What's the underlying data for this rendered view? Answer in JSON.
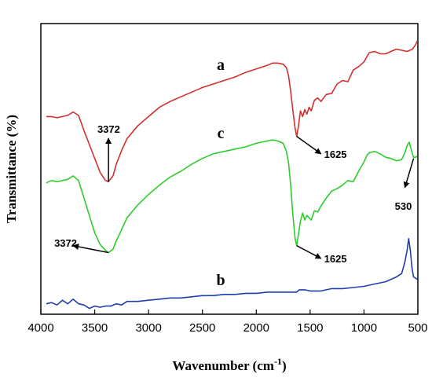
{
  "chart_data": {
    "type": "line",
    "xlabel": "Wavenumber (cm",
    "xlabel_sup": "-1",
    "xlabel_end": ")",
    "ylabel": "Transmittance (%)",
    "xlim": [
      4000,
      500
    ],
    "x_reversed": true,
    "ylim": [
      0,
      100
    ],
    "xticks": [
      4000,
      3500,
      3000,
      2500,
      2000,
      1500,
      1000,
      500
    ],
    "series": [
      {
        "name": "a",
        "color": "#d32f2f",
        "points": [
          [
            3950,
            68
          ],
          [
            3900,
            68
          ],
          [
            3850,
            67.6
          ],
          [
            3800,
            68
          ],
          [
            3750,
            68.4
          ],
          [
            3700,
            69.6
          ],
          [
            3650,
            68.4
          ],
          [
            3600,
            63.2
          ],
          [
            3550,
            58.4
          ],
          [
            3500,
            53.6
          ],
          [
            3450,
            48.8
          ],
          [
            3400,
            46
          ],
          [
            3372,
            45.6
          ],
          [
            3330,
            47.6
          ],
          [
            3300,
            51.6
          ],
          [
            3250,
            56.4
          ],
          [
            3200,
            60.4
          ],
          [
            3100,
            64.8
          ],
          [
            3000,
            68
          ],
          [
            2900,
            71.2
          ],
          [
            2800,
            73.2
          ],
          [
            2700,
            74.8
          ],
          [
            2600,
            76.4
          ],
          [
            2500,
            78
          ],
          [
            2400,
            79.2
          ],
          [
            2300,
            80.4
          ],
          [
            2200,
            81.6
          ],
          [
            2100,
            83.2
          ],
          [
            2000,
            84.4
          ],
          [
            1900,
            85.6
          ],
          [
            1850,
            86.4
          ],
          [
            1800,
            86.4
          ],
          [
            1750,
            86
          ],
          [
            1720,
            84.8
          ],
          [
            1700,
            82
          ],
          [
            1680,
            76.4
          ],
          [
            1660,
            70
          ],
          [
            1640,
            64
          ],
          [
            1625,
            61.2
          ],
          [
            1610,
            64.4
          ],
          [
            1590,
            70
          ],
          [
            1570,
            68
          ],
          [
            1550,
            70.4
          ],
          [
            1530,
            68.8
          ],
          [
            1510,
            71.2
          ],
          [
            1490,
            70
          ],
          [
            1460,
            73.6
          ],
          [
            1430,
            74.4
          ],
          [
            1400,
            73.2
          ],
          [
            1350,
            75.6
          ],
          [
            1300,
            76
          ],
          [
            1250,
            79.2
          ],
          [
            1200,
            80.4
          ],
          [
            1150,
            80
          ],
          [
            1100,
            84
          ],
          [
            1050,
            85.2
          ],
          [
            1000,
            86.8
          ],
          [
            970,
            88.8
          ],
          [
            950,
            90
          ],
          [
            900,
            90.4
          ],
          [
            850,
            89.6
          ],
          [
            800,
            89.6
          ],
          [
            750,
            90.4
          ],
          [
            700,
            91.2
          ],
          [
            650,
            90.8
          ],
          [
            600,
            90.4
          ],
          [
            550,
            91.2
          ],
          [
            520,
            92.8
          ],
          [
            505,
            94
          ]
        ]
      },
      {
        "name": "c",
        "color": "#2ecc2e",
        "points": [
          [
            3950,
            45.2
          ],
          [
            3900,
            46
          ],
          [
            3850,
            45.6
          ],
          [
            3800,
            46
          ],
          [
            3750,
            46.4
          ],
          [
            3700,
            47.6
          ],
          [
            3650,
            46
          ],
          [
            3600,
            40
          ],
          [
            3550,
            34
          ],
          [
            3500,
            28
          ],
          [
            3450,
            24
          ],
          [
            3400,
            22
          ],
          [
            3372,
            21.2
          ],
          [
            3330,
            22.4
          ],
          [
            3300,
            25.2
          ],
          [
            3250,
            29.2
          ],
          [
            3200,
            33.2
          ],
          [
            3100,
            37.6
          ],
          [
            3000,
            41.2
          ],
          [
            2900,
            44.4
          ],
          [
            2800,
            47.2
          ],
          [
            2700,
            49.2
          ],
          [
            2600,
            51.6
          ],
          [
            2500,
            53.6
          ],
          [
            2400,
            55.2
          ],
          [
            2300,
            56
          ],
          [
            2200,
            56.8
          ],
          [
            2100,
            57.6
          ],
          [
            2000,
            58.8
          ],
          [
            1900,
            59.6
          ],
          [
            1850,
            60
          ],
          [
            1800,
            59.6
          ],
          [
            1750,
            58.8
          ],
          [
            1720,
            56
          ],
          [
            1700,
            52
          ],
          [
            1680,
            44
          ],
          [
            1660,
            34
          ],
          [
            1640,
            26
          ],
          [
            1625,
            23.6
          ],
          [
            1610,
            27.2
          ],
          [
            1590,
            32
          ],
          [
            1570,
            34.8
          ],
          [
            1550,
            32.4
          ],
          [
            1530,
            34
          ],
          [
            1510,
            33.2
          ],
          [
            1490,
            32.4
          ],
          [
            1460,
            35.6
          ],
          [
            1430,
            35.2
          ],
          [
            1400,
            37.2
          ],
          [
            1350,
            40
          ],
          [
            1300,
            42.4
          ],
          [
            1250,
            43.2
          ],
          [
            1200,
            44.4
          ],
          [
            1150,
            46
          ],
          [
            1100,
            45.6
          ],
          [
            1050,
            49.2
          ],
          [
            1000,
            52.4
          ],
          [
            970,
            54.8
          ],
          [
            950,
            55.6
          ],
          [
            900,
            56
          ],
          [
            850,
            55.2
          ],
          [
            800,
            54
          ],
          [
            750,
            53.6
          ],
          [
            700,
            52.8
          ],
          [
            650,
            53.2
          ],
          [
            620,
            55.6
          ],
          [
            600,
            58
          ],
          [
            580,
            59.2
          ],
          [
            560,
            56.4
          ],
          [
            540,
            54
          ],
          [
            520,
            54
          ],
          [
            505,
            54.4
          ]
        ]
      },
      {
        "name": "b",
        "color": "#1f3fb0",
        "points": [
          [
            3950,
            3.6
          ],
          [
            3900,
            4
          ],
          [
            3850,
            3.2
          ],
          [
            3800,
            4.8
          ],
          [
            3750,
            3.6
          ],
          [
            3700,
            5.2
          ],
          [
            3650,
            3.6
          ],
          [
            3600,
            3.2
          ],
          [
            3550,
            2
          ],
          [
            3500,
            2.8
          ],
          [
            3450,
            2.4
          ],
          [
            3400,
            2.8
          ],
          [
            3350,
            2.8
          ],
          [
            3300,
            3.6
          ],
          [
            3250,
            3.2
          ],
          [
            3200,
            4.4
          ],
          [
            3100,
            4.4
          ],
          [
            3000,
            4.8
          ],
          [
            2900,
            5.2
          ],
          [
            2800,
            5.6
          ],
          [
            2700,
            5.6
          ],
          [
            2600,
            6
          ],
          [
            2500,
            6.4
          ],
          [
            2400,
            6.4
          ],
          [
            2300,
            6.8
          ],
          [
            2200,
            6.8
          ],
          [
            2100,
            7.2
          ],
          [
            2000,
            7.2
          ],
          [
            1900,
            7.6
          ],
          [
            1800,
            7.6
          ],
          [
            1700,
            7.6
          ],
          [
            1625,
            7.6
          ],
          [
            1600,
            8.4
          ],
          [
            1550,
            8.4
          ],
          [
            1500,
            8
          ],
          [
            1400,
            8
          ],
          [
            1300,
            8.8
          ],
          [
            1200,
            8.8
          ],
          [
            1100,
            9.2
          ],
          [
            1000,
            9.6
          ],
          [
            900,
            10.4
          ],
          [
            800,
            11.2
          ],
          [
            700,
            12.8
          ],
          [
            650,
            14
          ],
          [
            620,
            18
          ],
          [
            600,
            22
          ],
          [
            585,
            26
          ],
          [
            570,
            22
          ],
          [
            555,
            16
          ],
          [
            540,
            12.8
          ],
          [
            520,
            12.4
          ],
          [
            505,
            12
          ]
        ]
      }
    ],
    "series_labels": [
      {
        "text": "a",
        "x": 2330,
        "y": 84
      },
      {
        "text": "c",
        "x": 2330,
        "y": 60.5
      },
      {
        "text": "b",
        "x": 2330,
        "y": 10
      }
    ],
    "annotations": [
      {
        "text": "3372",
        "x1": 3372,
        "y1": 45.6,
        "x2": 3372,
        "y2": 60.5,
        "tx": 3370,
        "ty": 62.5
      },
      {
        "text": "1625",
        "x1": 1625,
        "y1": 61.2,
        "x2": 1400,
        "y2": 55.2,
        "tx": 1265,
        "ty": 53.8
      },
      {
        "text": "3372",
        "x1": 3372,
        "y1": 21.2,
        "x2": 3700,
        "y2": 23.6,
        "tx": 3770,
        "ty": 23.2
      },
      {
        "text": "1625",
        "x1": 1625,
        "y1": 23.6,
        "x2": 1400,
        "y2": 19.2,
        "tx": 1265,
        "ty": 17.8
      },
      {
        "text": "530",
        "x1": 540,
        "y1": 53.6,
        "x2": 620,
        "y2": 43.6,
        "tx": 635,
        "ty": 36
      }
    ]
  }
}
